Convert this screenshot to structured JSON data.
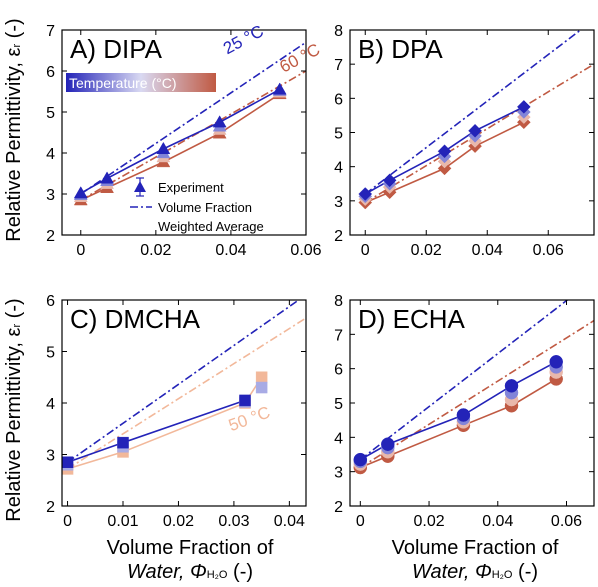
{
  "figure": {
    "ylabel": "Relative Permittivity, ε",
    "ylabel_sub": "r",
    "ylabel_unit": " (-)",
    "xlabel_line1": "Volume Fraction of",
    "xlabel_line2_pre": "Water, Φ",
    "xlabel_line2_sub": "H₂O",
    "xlabel_line2_post": " (-)",
    "colorbar_label": "Temperature (°C)",
    "legend": {
      "experiment": "Experiment",
      "vf_line1": "Volume Fraction",
      "vf_line2": "Weighted Average"
    },
    "colors": {
      "cold": "#2323b8",
      "hot": "#c05a43",
      "hot_light": "#f2b89a",
      "mid": "#8a94d8"
    }
  },
  "chart_data": [
    {
      "type": "scatter",
      "panel": "A",
      "title": "A) DIPA",
      "xlim": [
        -0.005,
        0.06
      ],
      "ylim": [
        2,
        7
      ],
      "xticks": [
        0,
        0.02,
        0.04,
        0.06
      ],
      "yticks": [
        2,
        3,
        4,
        5,
        6,
        7
      ],
      "x_tick_labels": [
        "0",
        "0.02",
        "0.04",
        "0.06"
      ],
      "y_tick_labels": [
        "2",
        "3",
        "4",
        "5",
        "6",
        "7"
      ],
      "annotations": [
        {
          "text": "25 °C",
          "x": 0.039,
          "y": 6.4,
          "color": "cold"
        },
        {
          "text": "60 °C",
          "x": 0.054,
          "y": 5.95,
          "color": "hot"
        }
      ],
      "x": [
        0,
        0.007,
        0.022,
        0.037,
        0.053
      ],
      "series": [
        {
          "temp": 25,
          "values": [
            3.02,
            3.38,
            4.1,
            4.75,
            5.55
          ]
        },
        {
          "temp": 35,
          "values": [
            2.98,
            3.32,
            4.0,
            4.65,
            5.52
          ]
        },
        {
          "temp": 45,
          "values": [
            2.93,
            3.25,
            3.9,
            4.57,
            5.48
          ]
        },
        {
          "temp": 60,
          "values": [
            2.85,
            3.15,
            3.78,
            4.48,
            5.44
          ]
        }
      ],
      "vfwa": [
        {
          "temp": 25,
          "x": [
            0,
            0.06
          ],
          "y": [
            3.0,
            6.7
          ]
        },
        {
          "temp": 60,
          "x": [
            0,
            0.06
          ],
          "y": [
            2.85,
            6.0
          ]
        }
      ]
    },
    {
      "type": "scatter",
      "panel": "B",
      "title": "B) DPA",
      "xlim": [
        -0.005,
        0.075
      ],
      "ylim": [
        2,
        8
      ],
      "xticks": [
        0,
        0.02,
        0.04,
        0.06
      ],
      "yticks": [
        2,
        3,
        4,
        5,
        6,
        7,
        8
      ],
      "x_tick_labels": [
        "0",
        "0.02",
        "0.04",
        "0.06"
      ],
      "y_tick_labels": [
        "2",
        "3",
        "4",
        "5",
        "6",
        "7",
        "8"
      ],
      "x": [
        0,
        0.008,
        0.026,
        0.036,
        0.052
      ],
      "series": [
        {
          "temp": 25,
          "values": [
            3.2,
            3.6,
            4.45,
            5.05,
            5.75
          ]
        },
        {
          "temp": 35,
          "values": [
            3.13,
            3.5,
            4.3,
            4.9,
            5.6
          ]
        },
        {
          "temp": 45,
          "values": [
            3.05,
            3.4,
            4.15,
            4.75,
            5.45
          ]
        },
        {
          "temp": 60,
          "values": [
            2.95,
            3.25,
            3.95,
            4.6,
            5.3
          ]
        }
      ],
      "vfwa": [
        {
          "temp": 25,
          "x": [
            0,
            0.075
          ],
          "y": [
            3.2,
            8.3
          ]
        },
        {
          "temp": 60,
          "x": [
            0,
            0.075
          ],
          "y": [
            2.95,
            7.0
          ]
        }
      ]
    },
    {
      "type": "scatter",
      "panel": "C",
      "title": "C) DMCHA",
      "xlim": [
        -0.001,
        0.043
      ],
      "ylim": [
        2,
        6
      ],
      "xticks": [
        0,
        0.01,
        0.02,
        0.03,
        0.04
      ],
      "yticks": [
        2,
        3,
        4,
        5,
        6
      ],
      "x_tick_labels": [
        "0",
        "0.01",
        "0.02",
        "0.03",
        "0.04"
      ],
      "y_tick_labels": [
        "2",
        "3",
        "4",
        "5",
        "6"
      ],
      "annotations": [
        {
          "text": "50 °C",
          "x": 0.0295,
          "y": 3.45,
          "color": "hot_light"
        }
      ],
      "x": [
        0,
        0.01,
        0.032,
        0.035
      ],
      "series": [
        {
          "temp": 25,
          "values": [
            2.85,
            3.23,
            4.05,
            null
          ]
        },
        {
          "temp": 35,
          "values": [
            2.8,
            3.15,
            4.02,
            4.3
          ]
        },
        {
          "temp": 50,
          "values": [
            2.72,
            3.05,
            4.0,
            4.5
          ]
        }
      ],
      "vfwa": [
        {
          "temp": 25,
          "x": [
            0,
            0.043
          ],
          "y": [
            2.85,
            6.1
          ]
        },
        {
          "temp": 50,
          "x": [
            0,
            0.043
          ],
          "y": [
            2.72,
            5.65
          ]
        }
      ]
    },
    {
      "type": "scatter",
      "panel": "D",
      "title": "D) ECHA",
      "xlim": [
        -0.003,
        0.068
      ],
      "ylim": [
        2,
        8
      ],
      "xticks": [
        0,
        0.02,
        0.04,
        0.06
      ],
      "yticks": [
        2,
        3,
        4,
        5,
        6,
        7,
        8
      ],
      "x_tick_labels": [
        "0",
        "0.02",
        "0.04",
        "0.06"
      ],
      "y_tick_labels": [
        "2",
        "3",
        "4",
        "5",
        "6",
        "7",
        "8"
      ],
      "x": [
        0,
        0.008,
        0.03,
        0.044,
        0.057
      ],
      "series": [
        {
          "temp": 25,
          "values": [
            3.35,
            3.8,
            4.65,
            5.5,
            6.2
          ]
        },
        {
          "temp": 35,
          "values": [
            3.3,
            3.7,
            4.55,
            5.3,
            6.05
          ]
        },
        {
          "temp": 45,
          "values": [
            3.22,
            3.58,
            4.45,
            5.1,
            5.9
          ]
        },
        {
          "temp": 60,
          "values": [
            3.12,
            3.45,
            4.35,
            4.92,
            5.7
          ]
        }
      ],
      "vfwa": [
        {
          "temp": 25,
          "x": [
            0,
            0.068
          ],
          "y": [
            3.35,
            8.6
          ]
        },
        {
          "temp": 60,
          "x": [
            0,
            0.068
          ],
          "y": [
            3.12,
            7.4
          ]
        }
      ]
    }
  ]
}
